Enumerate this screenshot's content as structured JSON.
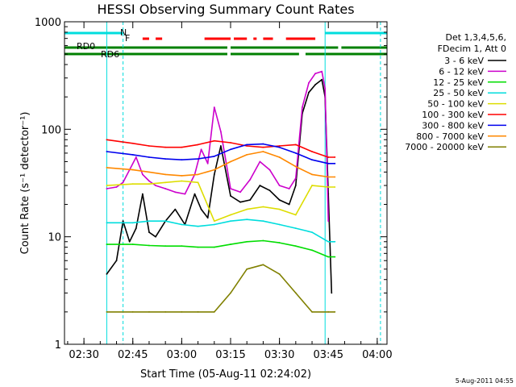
{
  "chart_data": {
    "type": "line",
    "title": "HESSI Observing Summary Count Rates",
    "xlabel": "Start Time (05-Aug-11 02:24:02)",
    "ylabel": "Count Rate (s⁻¹ detector⁻¹)",
    "y_scale": "log",
    "xlim": [
      "02:24:02",
      "04:03:00"
    ],
    "ylim": [
      1,
      1000
    ],
    "x_ticks": [
      "02:30",
      "02:45",
      "03:00",
      "03:15",
      "03:30",
      "03:45",
      "04:00"
    ],
    "y_ticks": [
      "1",
      "10",
      "100",
      "1000"
    ],
    "grid": false,
    "legend_title": [
      "Det 1,3,4,5,6,",
      "FDecim 1, Att 0"
    ],
    "legend_position": "right",
    "series": [
      {
        "name": "3 - 6 keV",
        "color": "#000000",
        "x": [
          "02:37",
          "02:40",
          "02:42",
          "02:44",
          "02:46",
          "02:48",
          "02:50",
          "02:52",
          "02:55",
          "02:58",
          "03:01",
          "03:04",
          "03:06",
          "03:08",
          "03:10",
          "03:12",
          "03:15",
          "03:18",
          "03:21",
          "03:24",
          "03:27",
          "03:30",
          "03:33",
          "03:35",
          "03:37",
          "03:39",
          "03:41",
          "03:43",
          "03:44",
          "03:45",
          "03:46"
        ],
        "y": [
          4.5,
          6,
          14,
          9,
          12,
          25,
          11,
          10,
          14,
          18,
          13,
          25,
          18,
          15,
          38,
          70,
          24,
          21,
          22,
          30,
          27,
          22,
          20,
          30,
          140,
          220,
          260,
          290,
          200,
          25,
          3
        ]
      },
      {
        "name": "6 - 12 keV",
        "color": "#cc00cc",
        "x": [
          "02:37",
          "02:40",
          "02:42",
          "02:44",
          "02:46",
          "02:48",
          "02:50",
          "02:52",
          "02:55",
          "02:58",
          "03:01",
          "03:04",
          "03:06",
          "03:08",
          "03:10",
          "03:12",
          "03:15",
          "03:18",
          "03:21",
          "03:24",
          "03:27",
          "03:30",
          "03:33",
          "03:35",
          "03:37",
          "03:39",
          "03:41",
          "03:43",
          "03:44",
          "03:45"
        ],
        "y": [
          28,
          29,
          32,
          42,
          55,
          38,
          33,
          30,
          28,
          26,
          25,
          38,
          65,
          48,
          160,
          95,
          28,
          26,
          34,
          50,
          42,
          30,
          28,
          35,
          160,
          270,
          330,
          345,
          240,
          14
        ]
      },
      {
        "name": "12 - 25 keV",
        "color": "#00dd00",
        "x": [
          "02:37",
          "02:45",
          "02:50",
          "02:55",
          "03:00",
          "03:05",
          "03:10",
          "03:15",
          "03:20",
          "03:25",
          "03:30",
          "03:35",
          "03:40",
          "03:45",
          "03:47"
        ],
        "y": [
          8.5,
          8.5,
          8.3,
          8.2,
          8.2,
          8,
          8,
          8.5,
          9,
          9.2,
          8.8,
          8.2,
          7.5,
          6.5,
          6.5
        ]
      },
      {
        "name": "25 - 50 keV",
        "color": "#00dddd",
        "x": [
          "02:37",
          "02:45",
          "02:50",
          "02:55",
          "03:00",
          "03:05",
          "03:10",
          "03:15",
          "03:20",
          "03:25",
          "03:30",
          "03:35",
          "03:40",
          "03:45",
          "03:47"
        ],
        "y": [
          13.5,
          13.5,
          14,
          14,
          13,
          12.5,
          13,
          14,
          14.5,
          14,
          13,
          12,
          11,
          9,
          9
        ]
      },
      {
        "name": "50 - 100 keV",
        "color": "#dddd00",
        "x": [
          "02:37",
          "02:45",
          "02:50",
          "02:55",
          "03:00",
          "03:05",
          "03:10",
          "03:15",
          "03:20",
          "03:25",
          "03:30",
          "03:35",
          "03:40",
          "03:45",
          "03:47"
        ],
        "y": [
          30,
          31,
          31,
          32,
          33,
          32,
          14,
          16,
          18,
          19,
          18,
          16,
          30,
          29,
          29
        ]
      },
      {
        "name": "100 - 300 keV",
        "color": "#ff0000",
        "x": [
          "02:37",
          "02:45",
          "02:50",
          "02:55",
          "03:00",
          "03:05",
          "03:10",
          "03:15",
          "03:20",
          "03:25",
          "03:30",
          "03:35",
          "03:40",
          "03:45",
          "03:47"
        ],
        "y": [
          80,
          74,
          70,
          68,
          68,
          72,
          78,
          75,
          70,
          68,
          70,
          72,
          62,
          55,
          55
        ]
      },
      {
        "name": "300 - 800 keV",
        "color": "#0000ee",
        "x": [
          "02:37",
          "02:45",
          "02:50",
          "02:55",
          "03:00",
          "03:05",
          "03:10",
          "03:15",
          "03:20",
          "03:25",
          "03:30",
          "03:35",
          "03:40",
          "03:45",
          "03:47"
        ],
        "y": [
          62,
          58,
          55,
          53,
          52,
          53,
          56,
          65,
          72,
          73,
          68,
          60,
          52,
          48,
          48
        ]
      },
      {
        "name": "800 - 7000 keV",
        "color": "#ff8800",
        "x": [
          "02:37",
          "02:45",
          "02:50",
          "02:55",
          "03:00",
          "03:05",
          "03:10",
          "03:15",
          "03:20",
          "03:25",
          "03:30",
          "03:35",
          "03:40",
          "03:45",
          "03:47"
        ],
        "y": [
          44,
          42,
          40,
          38,
          37,
          38,
          42,
          50,
          58,
          62,
          55,
          45,
          38,
          36,
          36
        ]
      },
      {
        "name": "7000 - 20000 keV",
        "color": "#808000",
        "x": [
          "02:37",
          "02:45",
          "02:50",
          "02:55",
          "03:00",
          "03:05",
          "03:10",
          "03:15",
          "03:20",
          "03:25",
          "03:30",
          "03:35",
          "03:40",
          "03:45",
          "03:47"
        ],
        "y": [
          2,
          2,
          2,
          2,
          2,
          2,
          2,
          3,
          5,
          5.5,
          4.5,
          3,
          2,
          2,
          2
        ]
      }
    ],
    "annotations": [
      {
        "text": "N",
        "color": "#00dddd"
      },
      {
        "text": "F",
        "color": "#ff0000"
      },
      {
        "text": "RD0",
        "color": "#008000"
      },
      {
        "text": "RD6",
        "color": "#008000"
      }
    ],
    "status_bars": {
      "night": {
        "color": "#00dddd",
        "segments": [
          [
            "02:24",
            "02:42"
          ],
          [
            "03:44",
            "04:03"
          ]
        ]
      },
      "flare": {
        "color": "#ff0000",
        "segments": [
          [
            "02:48",
            "02:50"
          ],
          [
            "02:52",
            "02:54"
          ],
          [
            "03:07",
            "03:15"
          ],
          [
            "03:16",
            "03:20"
          ],
          [
            "03:22",
            "03:23"
          ],
          [
            "03:25",
            "03:28"
          ],
          [
            "03:32",
            "03:41"
          ]
        ]
      },
      "rd0": {
        "color": "#008000",
        "segments": [
          [
            "02:24",
            "03:14"
          ],
          [
            "03:15",
            "03:48"
          ],
          [
            "03:49",
            "04:03"
          ]
        ]
      },
      "rd6": {
        "color": "#008000",
        "segments": [
          [
            "02:24",
            "03:14"
          ],
          [
            "03:15",
            "03:36"
          ],
          [
            "03:38",
            "04:03"
          ]
        ]
      }
    },
    "vertical_markers": [
      {
        "time": "02:37",
        "color": "#00dddd",
        "style": "solid"
      },
      {
        "time": "02:42",
        "color": "#00dddd",
        "style": "dashed"
      },
      {
        "time": "03:44",
        "color": "#00dddd",
        "style": "solid"
      },
      {
        "time": "04:01",
        "color": "#00dddd",
        "style": "dashed"
      }
    ]
  },
  "footer": {
    "timestamp": "5-Aug-2011 04:55"
  }
}
